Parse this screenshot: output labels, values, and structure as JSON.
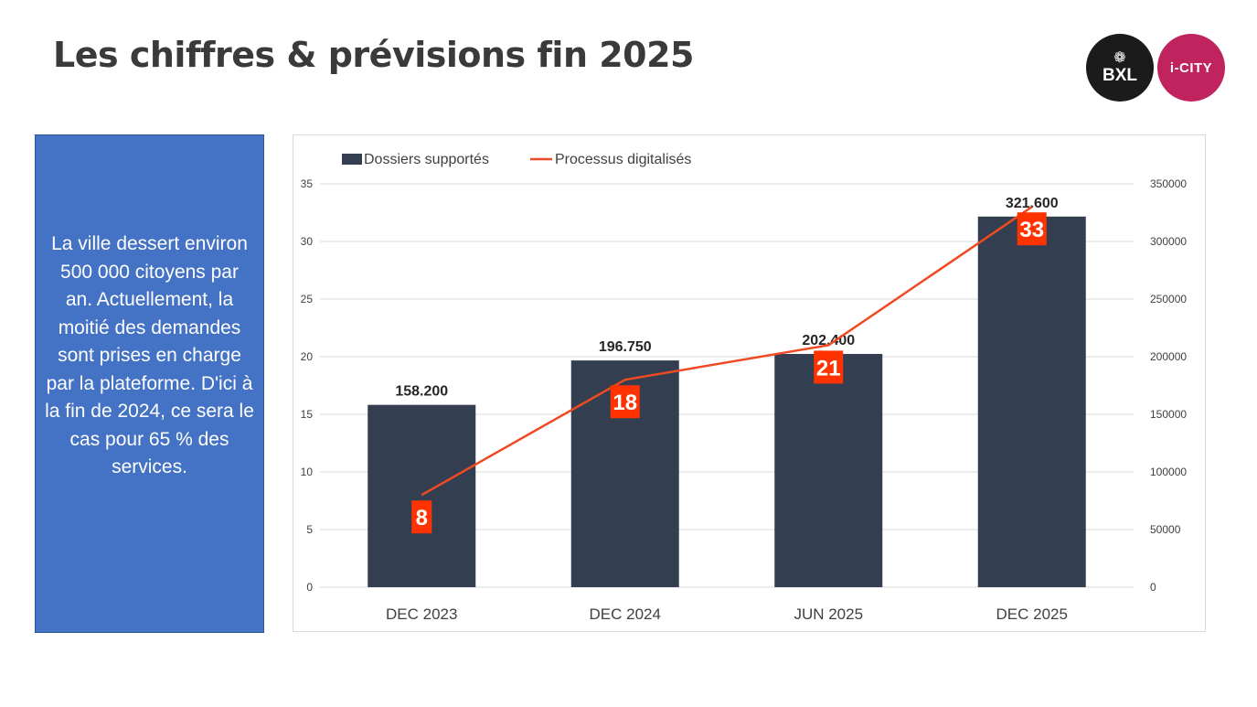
{
  "page": {
    "title": "Les chiffres & prévisions fin 2025",
    "info_text": "La ville dessert environ 500 000 citoyens par an. Actuellement, la moitié des demandes sont prises en charge par la plateforme. D'ici à la fin de 2024, ce sera le cas pour 65 % des services."
  },
  "logos": {
    "bxl": "BXL",
    "icity": "i-CITY"
  },
  "colors": {
    "bar": "#333f50",
    "line": "#f04a23",
    "label_box": "#ff3300",
    "info_box": "#4472c4"
  },
  "chart_data": {
    "type": "bar",
    "categories": [
      "DEC 2023",
      "DEC 2024",
      "JUN 2025",
      "DEC 2025"
    ],
    "series": [
      {
        "name": "Dossiers supportés",
        "type": "bar",
        "axis": "right",
        "values": [
          158200,
          196750,
          202400,
          321600
        ],
        "labels": [
          "158.200",
          "196.750",
          "202.400",
          "321.600"
        ]
      },
      {
        "name": "Processus digitalisés",
        "type": "line",
        "axis": "left",
        "values": [
          8,
          18,
          21,
          33
        ],
        "labels": [
          "8",
          "18",
          "21",
          "33"
        ]
      }
    ],
    "y_left": {
      "lim": [
        0,
        35
      ],
      "ticks": [
        "0",
        "5",
        "10",
        "15",
        "20",
        "25",
        "30",
        "35"
      ]
    },
    "y_right": {
      "lim": [
        0,
        350000
      ],
      "ticks": [
        "0",
        "50000",
        "100000",
        "150000",
        "200000",
        "250000",
        "300000",
        "350000"
      ]
    },
    "legend": "top-left",
    "grid": true
  }
}
